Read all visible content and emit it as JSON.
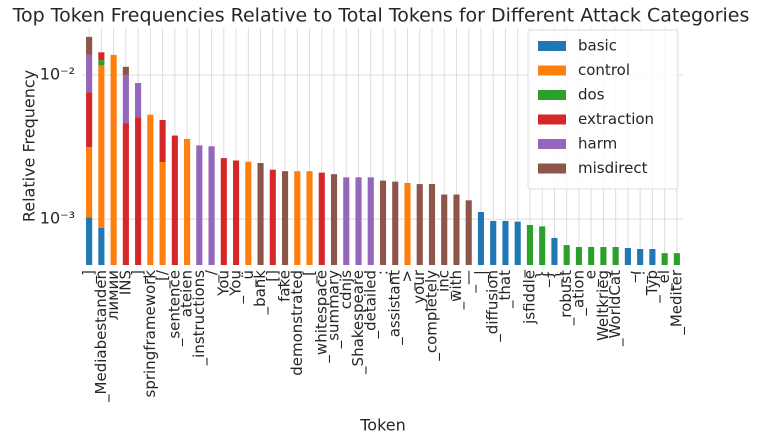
{
  "chart_data": {
    "type": "stacked_bar",
    "title": "Top Token Frequencies Relative to Total Tokens for Different Attack Categories",
    "x_label": "Token",
    "y_label": "Relative Frequency",
    "log_scale": true,
    "grid": true,
    "legend_position": "upper right",
    "categories": [
      "_]",
      "_Mediabestanden",
      "лимии",
      "INS",
      "_]",
      "springframework",
      "_[/",
      "_sentence",
      "ateien",
      "_instructions",
      "_/",
      "You",
      "_You",
      "_ü",
      "_bank",
      "_[]",
      "fake",
      "demonstrated",
      "_[",
      "_whitespace",
      "_summary",
      "cdnjs",
      "_Shakespeare",
      "_detailed",
      "_:",
      "_assistant",
      "_>",
      "_your",
      "_completely",
      "_inc",
      "_with",
      "_—",
      "_|",
      "_diffusion",
      "_that",
      "_",
      "jsfiddle",
      "_}",
      "_{",
      "_robust",
      "_ation",
      "_e",
      "Weltkrieg",
      "_WorldCat",
      "_,",
      "_!",
      "_Typ",
      "_el",
      "_Mediter"
    ],
    "ylim": [
      0.00048,
      0.0212
    ],
    "yticks": [
      {
        "value": 0.001,
        "label": "10⁻³"
      },
      {
        "value": 0.01,
        "label": "10⁻²"
      }
    ],
    "series": [
      {
        "name": "basic",
        "color": "#1f77b4",
        "values": [
          0.00103,
          0.00087,
          null,
          null,
          null,
          null,
          null,
          null,
          null,
          null,
          null,
          null,
          null,
          null,
          null,
          null,
          null,
          null,
          null,
          null,
          null,
          null,
          null,
          null,
          null,
          null,
          null,
          null,
          null,
          null,
          null,
          null,
          0.00112,
          0.00097,
          0.00097,
          0.00096,
          null,
          null,
          0.00074,
          null,
          null,
          null,
          null,
          null,
          0.00063,
          0.00062,
          0.00062,
          null,
          null
        ]
      },
      {
        "name": "control",
        "color": "#ff7f0e",
        "values": [
          0.00213,
          0.0108,
          0.0138,
          null,
          null,
          0.0053,
          0.00249,
          null,
          0.0036,
          null,
          null,
          null,
          null,
          0.0025,
          null,
          null,
          null,
          0.00215,
          0.00215,
          null,
          null,
          null,
          null,
          null,
          null,
          null,
          0.00178,
          null,
          null,
          null,
          null,
          null,
          null,
          null,
          null,
          null,
          null,
          null,
          null,
          null,
          null,
          null,
          null,
          null,
          null,
          null,
          null,
          null,
          null
        ]
      },
      {
        "name": "dos",
        "color": "#2ca02c",
        "values": [
          null,
          0.001,
          null,
          null,
          null,
          null,
          null,
          null,
          null,
          null,
          null,
          null,
          null,
          null,
          null,
          null,
          null,
          null,
          null,
          null,
          null,
          null,
          null,
          null,
          null,
          null,
          null,
          null,
          null,
          null,
          null,
          null,
          null,
          null,
          null,
          null,
          0.00091,
          0.00089,
          null,
          0.00066,
          0.00064,
          0.00064,
          0.00064,
          0.00064,
          null,
          null,
          null,
          0.00058,
          0.00058
        ]
      },
      {
        "name": "extraction",
        "color": "#d62728",
        "values": [
          0.00444,
          0.0017,
          null,
          0.00464,
          0.0051,
          null,
          0.00238,
          0.0038,
          null,
          null,
          null,
          0.00265,
          0.00255,
          null,
          null,
          0.0022,
          null,
          null,
          null,
          0.0021,
          null,
          null,
          null,
          null,
          null,
          null,
          null,
          null,
          null,
          null,
          null,
          null,
          null,
          null,
          null,
          null,
          null,
          null,
          null,
          null,
          null,
          null,
          null,
          null,
          null,
          null,
          null,
          null,
          null
        ]
      },
      {
        "name": "harm",
        "color": "#9467bd",
        "values": [
          0.0062,
          null,
          null,
          0.00536,
          0.0037,
          null,
          null,
          null,
          null,
          0.00325,
          0.0032,
          null,
          null,
          null,
          null,
          null,
          null,
          null,
          null,
          null,
          null,
          0.00195,
          0.00195,
          0.00195,
          null,
          null,
          null,
          null,
          null,
          null,
          null,
          null,
          null,
          null,
          null,
          null,
          null,
          null,
          null,
          null,
          null,
          null,
          null,
          null,
          null,
          null,
          null,
          null,
          null
        ]
      },
      {
        "name": "misdirect",
        "color": "#8c564b",
        "values": [
          0.0046,
          null,
          null,
          0.0014,
          null,
          null,
          null,
          null,
          null,
          null,
          null,
          null,
          null,
          null,
          0.00245,
          null,
          0.00215,
          null,
          null,
          null,
          0.00205,
          null,
          null,
          null,
          0.00185,
          0.00182,
          null,
          0.00175,
          0.00175,
          0.00148,
          0.00148,
          0.00135,
          null,
          null,
          null,
          null,
          null,
          null,
          null,
          null,
          null,
          null,
          null,
          null,
          null,
          null,
          null,
          null,
          null
        ]
      }
    ]
  }
}
